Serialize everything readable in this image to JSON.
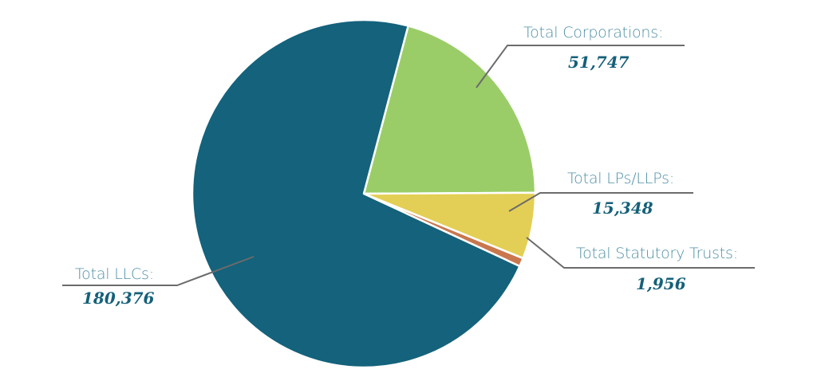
{
  "chart_data": {
    "type": "pie",
    "title": "",
    "categories": [
      "Total LLCs",
      "Total Corporations",
      "Total LPs/LLPs",
      "Total Statutory Trusts"
    ],
    "values": [
      180376,
      51747,
      15348,
      1956
    ],
    "colors": [
      "#14627c",
      "#9acd68",
      "#e3cf55",
      "#c8774f"
    ],
    "labels": [
      {
        "label": "Total LLCs:",
        "value": "180,376"
      },
      {
        "label": "Total Corporations:",
        "value": "51,747"
      },
      {
        "label": "Total LPs/LLPs:",
        "value": "15,348"
      },
      {
        "label": "Total Statutory Trusts:",
        "value": "1,956"
      }
    ],
    "legend": "none",
    "start_angle_deg": 15
  }
}
